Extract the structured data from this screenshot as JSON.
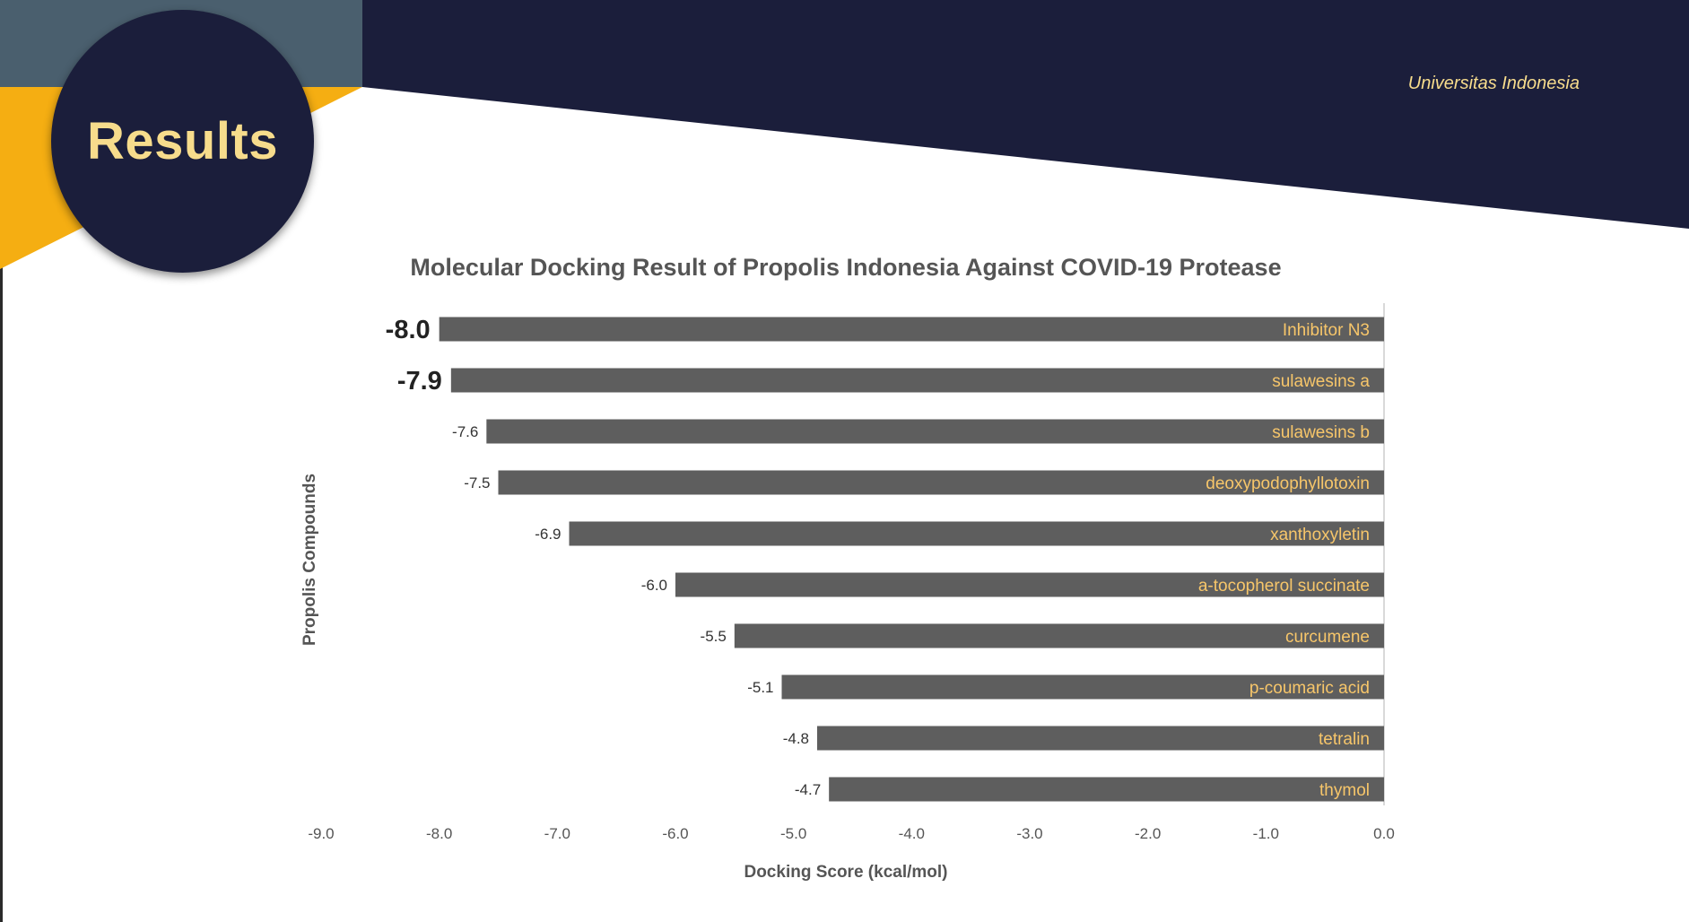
{
  "slide": {
    "heading": "Results",
    "institution": "Universitas Indonesia"
  },
  "colors": {
    "navy": "#1b1e3b",
    "slate": "#4a5f6e",
    "gold": "#f5ae12",
    "heading_text": "#f7dc8c",
    "bar": "#5e5e5e",
    "bar_label": "#f7c66a",
    "axis_line": "#d9d9d9"
  },
  "chart_data": {
    "type": "bar",
    "orientation": "horizontal",
    "title": "Molecular Docking Result of Propolis Indonesia Against COVID-19 Protease",
    "xlabel": "Docking Score (kcal/mol)",
    "ylabel": "Propolis Compounds",
    "xlim": [
      -9.0,
      0.0
    ],
    "xticks": [
      "-9.0",
      "-8.0",
      "-7.0",
      "-6.0",
      "-5.0",
      "-4.0",
      "-3.0",
      "-2.0",
      "-1.0",
      "0.0"
    ],
    "grid": false,
    "legend": "none",
    "categories": [
      "Inhibitor N3",
      "sulawesins a",
      "sulawesins b",
      "deoxypodophyllotoxin",
      "xanthoxyletin",
      "a-tocopherol succinate",
      "curcumene",
      "p-coumaric acid",
      "tetralin",
      "thymol"
    ],
    "values": [
      -8.0,
      -7.9,
      -7.6,
      -7.5,
      -6.9,
      -6.0,
      -5.5,
      -5.1,
      -4.8,
      -4.7
    ],
    "value_labels": [
      "-8.0",
      "-7.9",
      "-7.6",
      "-7.5",
      "-6.9",
      "-6.0",
      "-5.5",
      "-5.1",
      "-4.8",
      "-4.7"
    ],
    "emphasized": [
      true,
      true,
      false,
      false,
      false,
      false,
      false,
      false,
      false,
      false
    ]
  }
}
